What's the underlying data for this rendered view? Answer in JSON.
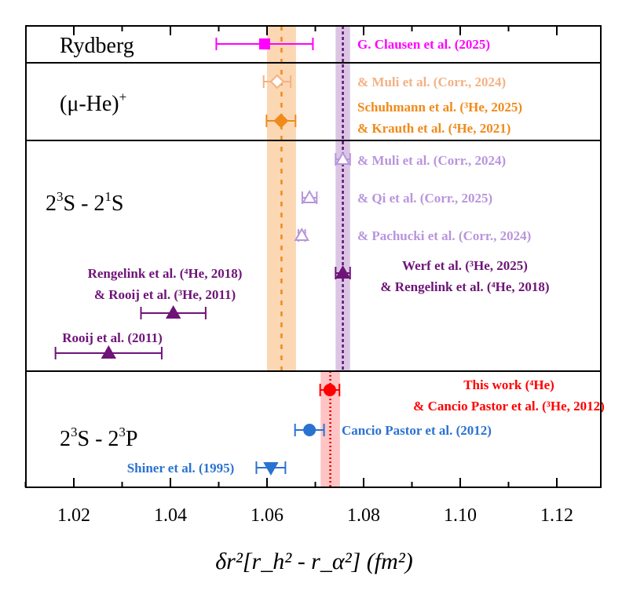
{
  "chart_data": {
    "type": "scatter",
    "title": "",
    "xlabel": "δr²[r_h² - r_α²] (fm²)",
    "xlabel_parts": {
      "main": "δr",
      "sup1": "2",
      "open": "[r",
      "h": "h",
      "sup2": "2",
      "dash": " - r",
      "alpha": "α",
      "sup3": "2",
      "close": "] (fm",
      "sup4": "2",
      "end": ")"
    },
    "xlim": [
      1.0,
      1.13
    ],
    "xticks": [
      1.02,
      1.04,
      1.06,
      1.08,
      1.1,
      1.12
    ],
    "xtick_labels": [
      "1.02",
      "1.04",
      "1.06",
      "1.08",
      "1.10",
      "1.12"
    ],
    "groups": [
      {
        "label": "Rydberg"
      },
      {
        "label": "(μ-He)",
        "sup": "+"
      },
      {
        "label_parts": [
          "2",
          "3",
          "S - 2",
          "1",
          "S"
        ]
      },
      {
        "label_parts": [
          "2",
          "3",
          "S - 2",
          "3",
          "P"
        ]
      }
    ],
    "bands": [
      {
        "name": "muonic",
        "center": 1.063,
        "half_width": 0.003,
        "color": "#fbd7b3",
        "line_color": "#f08a1a"
      },
      {
        "name": "2S-2S",
        "center": 1.0757,
        "half_width": 0.0015,
        "color": "#dcc5e4",
        "line_color": "#5a1570"
      },
      {
        "name": "2S-2P",
        "center": 1.0731,
        "half_width": 0.002,
        "color": "#ffc4c4",
        "line_color": "#e00000"
      }
    ],
    "points": [
      {
        "label": [
          "G. Clausen et al. (2025)"
        ],
        "value": 1.0595,
        "error": 0.01,
        "marker": "square",
        "filled": true,
        "color": "#ff00ff"
      },
      {
        "label": [
          "& Muli et al. (Corr., 2024)"
        ],
        "value": 1.0621,
        "error": 0.0028,
        "marker": "diamond",
        "filled": false,
        "color": "#f4b183"
      },
      {
        "label": [
          "Schuhmann et al. (³He, 2025)",
          "& Krauth et al. (⁴He, 2021)"
        ],
        "value": 1.0629,
        "error": 0.003,
        "marker": "diamond",
        "filled": true,
        "color": "#f08a1a"
      },
      {
        "label": [
          "& Muli et al. (Corr., 2024)"
        ],
        "value": 1.0757,
        "error": 0.0015,
        "marker": "triangle",
        "filled": false,
        "color": "#b895dd"
      },
      {
        "label": [
          "& Qi et al. (Corr., 2025)"
        ],
        "value": 1.0688,
        "error": 0.0015,
        "marker": "triangle",
        "filled": false,
        "color": "#b895dd"
      },
      {
        "label": [
          "& Pachucki et al. (Corr., 2024)"
        ],
        "value": 1.0672,
        "error": 0.0007,
        "marker": "triangle",
        "filled": false,
        "color": "#b895dd"
      },
      {
        "label": [
          "Werf et al. (³He, 2025)",
          "& Rengelink et al. (⁴He, 2018)"
        ],
        "value": 1.0757,
        "error": 0.0015,
        "marker": "triangle",
        "filled": true,
        "color": "#6e1478"
      },
      {
        "label": [
          "Rengelink et al. (⁴He, 2018)",
          "& Rooij et al. (³He, 2011)"
        ],
        "value": 1.0406,
        "error": 0.0067,
        "marker": "triangle",
        "filled": true,
        "color": "#6e1478"
      },
      {
        "label": [
          "Rooij et al. (2011)"
        ],
        "value": 1.0272,
        "error": 0.011,
        "marker": "triangle",
        "filled": true,
        "color": "#6e1478"
      },
      {
        "label": [
          "This work (⁴He)",
          "& Cancio Pastor et al. (³He, 2012)"
        ],
        "value": 1.073,
        "error": 0.002,
        "marker": "circle",
        "filled": true,
        "color": "#ff0000"
      },
      {
        "label": [
          "Cancio Pastor et al. (2012)"
        ],
        "value": 1.0688,
        "error": 0.003,
        "marker": "circle",
        "filled": true,
        "color": "#2a72d0"
      },
      {
        "label": [
          "Shiner et al. (1995)"
        ],
        "value": 1.0608,
        "error": 0.003,
        "marker": "triangle-down",
        "filled": true,
        "color": "#2a72d0"
      }
    ]
  }
}
